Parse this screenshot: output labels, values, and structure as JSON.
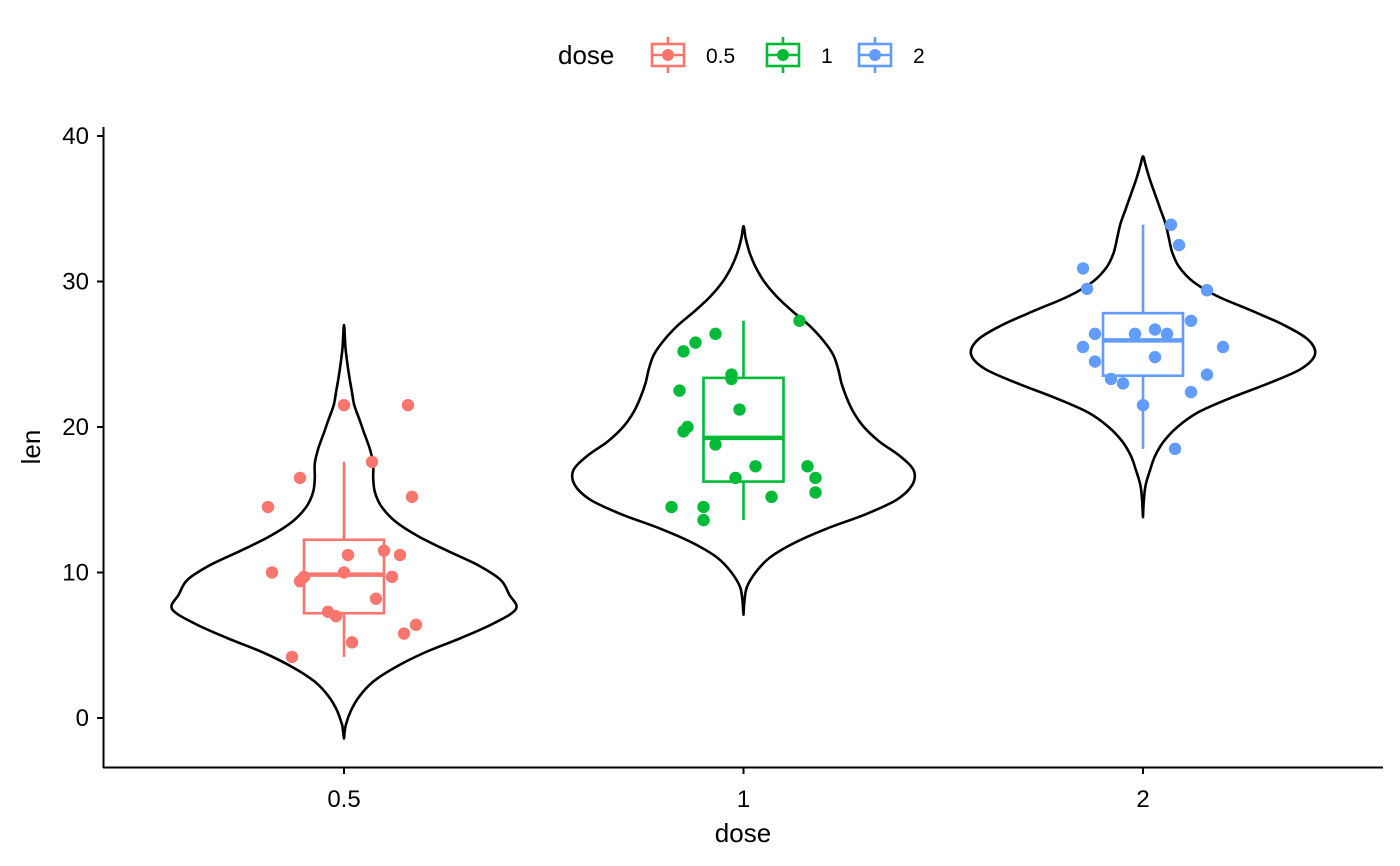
{
  "chart_data": {
    "type": "violin",
    "title": "",
    "xlabel": "dose",
    "ylabel": "len",
    "ylim": [
      -3.4,
      40.3
    ],
    "yticks": [
      0,
      10,
      20,
      30,
      40
    ],
    "grid": false,
    "legend": {
      "title": "dose",
      "position": "top",
      "entries": [
        {
          "label": "0.5",
          "color": "#F8766D"
        },
        {
          "label": "1",
          "color": "#00BA38"
        },
        {
          "label": "2",
          "color": "#619CFF"
        }
      ]
    },
    "categories": [
      "0.5",
      "1",
      "2"
    ],
    "series": [
      {
        "category": "0.5",
        "color": "#F8766D",
        "box": {
          "min": 4.2,
          "q1": 7.2,
          "median": 9.85,
          "q3": 12.25,
          "max": 17.6
        },
        "violin": {
          "y": [
            -1.4,
            -0.5,
            0.5,
            1.5,
            2.5,
            3.5,
            4.5,
            5.5,
            6.5,
            7.5,
            8.5,
            9.5,
            10.5,
            11.5,
            12.5,
            13.5,
            14.5,
            15.5,
            16.5,
            17.5,
            18.5,
            19.5,
            20.5,
            21.5,
            22.5,
            23.5,
            24.5,
            25.5,
            27.0
          ],
          "half_width": [
            0,
            0.01,
            0.04,
            0.09,
            0.17,
            0.3,
            0.47,
            0.68,
            0.87,
            1.0,
            0.96,
            0.91,
            0.78,
            0.6,
            0.43,
            0.3,
            0.22,
            0.18,
            0.17,
            0.17,
            0.15,
            0.12,
            0.09,
            0.06,
            0.045,
            0.03,
            0.018,
            0.008,
            0
          ]
        },
        "points": [
          [
            -0.19,
            14.5
          ],
          [
            -0.18,
            10.0
          ],
          [
            -0.11,
            16.5
          ],
          [
            -0.11,
            9.4
          ],
          [
            -0.1,
            9.7
          ],
          [
            -0.04,
            7.3
          ],
          [
            -0.02,
            7.0
          ],
          [
            0.0,
            10.0
          ],
          [
            0.0,
            21.5
          ],
          [
            0.01,
            11.2
          ],
          [
            0.02,
            5.2
          ],
          [
            -0.13,
            4.2
          ],
          [
            0.07,
            17.6
          ],
          [
            0.08,
            8.2
          ],
          [
            0.1,
            11.5
          ],
          [
            0.12,
            9.7
          ],
          [
            0.14,
            11.2
          ],
          [
            0.16,
            21.5
          ],
          [
            0.18,
            6.4
          ],
          [
            0.15,
            5.8
          ],
          [
            0.17,
            15.2
          ]
        ]
      },
      {
        "category": "1",
        "color": "#00BA38",
        "box": {
          "min": 13.6,
          "q1": 16.25,
          "median": 19.25,
          "q3": 23.375,
          "max": 27.3
        },
        "violin": {
          "y": [
            7.1,
            8.0,
            9.0,
            10.0,
            11.0,
            12.0,
            13.0,
            14.0,
            15.0,
            16.0,
            17.0,
            18.0,
            19.0,
            20.0,
            21.0,
            22.0,
            23.0,
            24.0,
            25.0,
            26.0,
            27.0,
            28.0,
            29.0,
            30.0,
            31.0,
            32.0,
            33.0,
            33.8
          ],
          "half_width": [
            0,
            0.005,
            0.02,
            0.07,
            0.15,
            0.29,
            0.48,
            0.71,
            0.89,
            0.98,
            0.99,
            0.91,
            0.79,
            0.7,
            0.64,
            0.6,
            0.57,
            0.55,
            0.52,
            0.46,
            0.38,
            0.28,
            0.19,
            0.12,
            0.07,
            0.035,
            0.012,
            0
          ]
        },
        "points": [
          [
            -0.18,
            14.5
          ],
          [
            -0.16,
            22.5
          ],
          [
            -0.15,
            25.2
          ],
          [
            -0.15,
            19.7
          ],
          [
            -0.14,
            20.0
          ],
          [
            -0.12,
            25.8
          ],
          [
            -0.1,
            14.5
          ],
          [
            -0.1,
            13.6
          ],
          [
            -0.07,
            26.4
          ],
          [
            -0.07,
            18.8
          ],
          [
            -0.03,
            23.6
          ],
          [
            -0.03,
            23.3
          ],
          [
            -0.02,
            16.5
          ],
          [
            -0.01,
            21.2
          ],
          [
            0.03,
            17.3
          ],
          [
            0.07,
            15.2
          ],
          [
            0.14,
            27.3
          ],
          [
            0.16,
            17.3
          ],
          [
            0.18,
            16.5
          ],
          [
            0.18,
            15.5
          ]
        ]
      },
      {
        "category": "2",
        "color": "#619CFF",
        "box": {
          "min": 18.5,
          "q1": 23.525,
          "median": 25.95,
          "q3": 27.825,
          "max": 33.9
        },
        "violin": {
          "y": [
            13.8,
            15.0,
            16.0,
            17.0,
            18.0,
            19.0,
            20.0,
            21.0,
            22.0,
            23.0,
            24.0,
            25.0,
            26.0,
            27.0,
            28.0,
            29.0,
            30.0,
            31.0,
            32.0,
            33.0,
            34.0,
            35.0,
            36.0,
            37.0,
            38.0,
            38.6
          ],
          "half_width": [
            0,
            0.005,
            0.015,
            0.04,
            0.07,
            0.12,
            0.2,
            0.32,
            0.51,
            0.73,
            0.92,
            1.0,
            0.96,
            0.82,
            0.63,
            0.43,
            0.29,
            0.21,
            0.17,
            0.15,
            0.13,
            0.1,
            0.07,
            0.04,
            0.015,
            0
          ]
        },
        "points": [
          [
            -0.15,
            25.5
          ],
          [
            -0.15,
            30.9
          ],
          [
            -0.12,
            26.4
          ],
          [
            -0.12,
            24.5
          ],
          [
            -0.14,
            29.5
          ],
          [
            -0.08,
            23.3
          ],
          [
            -0.05,
            23.0
          ],
          [
            -0.02,
            26.4
          ],
          [
            0.03,
            26.7
          ],
          [
            0.03,
            24.8
          ],
          [
            0.0,
            21.5
          ],
          [
            0.06,
            26.4
          ],
          [
            0.07,
            33.9
          ],
          [
            0.08,
            18.5
          ],
          [
            0.09,
            32.5
          ],
          [
            0.12,
            27.3
          ],
          [
            0.12,
            22.4
          ],
          [
            0.16,
            23.6
          ],
          [
            0.16,
            29.4
          ],
          [
            0.2,
            25.5
          ]
        ]
      }
    ]
  }
}
